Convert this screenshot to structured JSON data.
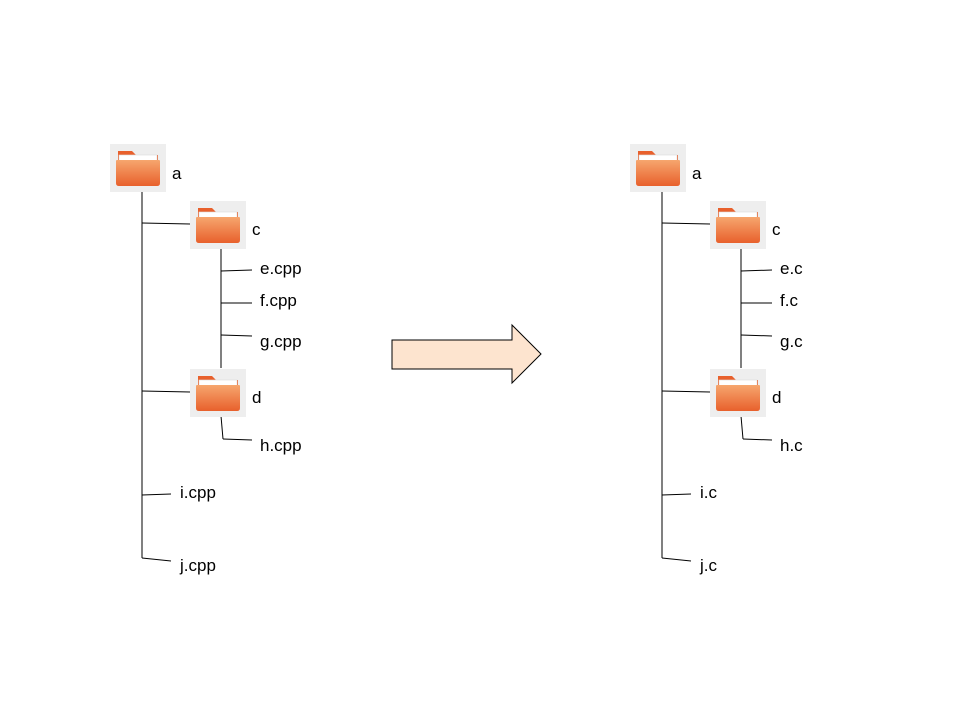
{
  "colors": {
    "folder_body": "#e8602c",
    "folder_highlight": "#f6a66e",
    "folder_tile": "#eeeeee",
    "arrow_fill": "#fde4cf",
    "line": "#000000"
  },
  "icons": {
    "folder": "folder-icon",
    "arrow": "right-arrow"
  },
  "before": {
    "root": "a",
    "folder_c": {
      "name": "c",
      "files": [
        "e.cpp",
        "f.cpp",
        "g.cpp"
      ]
    },
    "folder_d": {
      "name": "d",
      "files": [
        "h.cpp"
      ]
    },
    "root_files": [
      "i.cpp",
      "j.cpp"
    ]
  },
  "after": {
    "root": "a",
    "folder_c": {
      "name": "c",
      "files": [
        "e.c",
        "f.c",
        "g.c"
      ]
    },
    "folder_d": {
      "name": "d",
      "files": [
        "h.c"
      ]
    },
    "root_files": [
      "i.c",
      "j.c"
    ]
  }
}
